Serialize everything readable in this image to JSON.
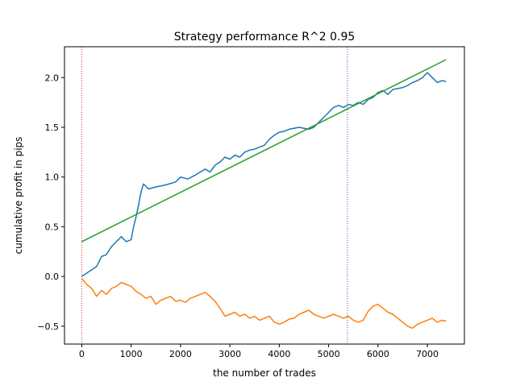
{
  "chart_data": {
    "type": "line",
    "title": "Strategy performance R^2 0.95",
    "xlabel": "the number of trades",
    "ylabel": "cumulative profit in pips",
    "xlim": [
      -350,
      7750
    ],
    "ylim": [
      -0.68,
      2.31
    ],
    "xticks": [
      0,
      1000,
      2000,
      3000,
      4000,
      5000,
      6000,
      7000
    ],
    "yticks": [
      -0.5,
      0.0,
      0.5,
      1.0,
      1.5,
      2.0
    ],
    "xtick_labels": [
      "0",
      "1000",
      "2000",
      "3000",
      "4000",
      "5000",
      "6000",
      "7000"
    ],
    "ytick_labels": [
      "−0.5",
      "0.0",
      "0.5",
      "1.0",
      "1.5",
      "2.0"
    ],
    "grid": false,
    "legend": "none",
    "vlines": [
      {
        "x": 0,
        "color": "#d62728",
        "style": "dotted"
      },
      {
        "x": 5380,
        "color": "#5a3fbf",
        "style": "dotted"
      }
    ],
    "series": [
      {
        "color": "#1f77b4",
        "x": [
          0,
          150,
          300,
          400,
          500,
          600,
          700,
          800,
          900,
          1000,
          1050,
          1100,
          1150,
          1200,
          1250,
          1350,
          1500,
          1700,
          1900,
          2000,
          2150,
          2300,
          2400,
          2500,
          2600,
          2700,
          2800,
          2900,
          3000,
          3100,
          3200,
          3300,
          3400,
          3500,
          3700,
          3800,
          3900,
          4000,
          4100,
          4200,
          4400,
          4600,
          4700,
          4800,
          4900,
          5000,
          5100,
          5200,
          5300,
          5400,
          5500,
          5600,
          5700,
          5800,
          5900,
          6000,
          6100,
          6200,
          6300,
          6500,
          6600,
          6700,
          6800,
          6900,
          7000,
          7100,
          7200,
          7300,
          7380
        ],
        "y": [
          0.0,
          0.05,
          0.1,
          0.2,
          0.22,
          0.3,
          0.35,
          0.4,
          0.35,
          0.37,
          0.5,
          0.6,
          0.72,
          0.85,
          0.93,
          0.88,
          0.9,
          0.92,
          0.95,
          1.0,
          0.98,
          1.02,
          1.05,
          1.08,
          1.05,
          1.12,
          1.15,
          1.2,
          1.18,
          1.22,
          1.2,
          1.25,
          1.27,
          1.28,
          1.32,
          1.38,
          1.42,
          1.45,
          1.46,
          1.48,
          1.5,
          1.48,
          1.5,
          1.55,
          1.6,
          1.65,
          1.7,
          1.72,
          1.7,
          1.73,
          1.72,
          1.75,
          1.73,
          1.78,
          1.8,
          1.85,
          1.87,
          1.83,
          1.88,
          1.9,
          1.92,
          1.95,
          1.97,
          2.0,
          2.05,
          2.0,
          1.95,
          1.97,
          1.96
        ]
      },
      {
        "color": "#ff7f0e",
        "x": [
          0,
          100,
          200,
          300,
          400,
          500,
          600,
          700,
          800,
          900,
          1000,
          1100,
          1200,
          1300,
          1400,
          1500,
          1600,
          1700,
          1800,
          1900,
          2000,
          2100,
          2200,
          2300,
          2400,
          2500,
          2600,
          2700,
          2800,
          2900,
          3000,
          3100,
          3200,
          3300,
          3400,
          3500,
          3600,
          3700,
          3800,
          3900,
          4000,
          4100,
          4200,
          4300,
          4400,
          4500,
          4600,
          4700,
          4800,
          4900,
          5000,
          5100,
          5200,
          5300,
          5400,
          5500,
          5600,
          5700,
          5800,
          5900,
          6000,
          6100,
          6200,
          6300,
          6400,
          6500,
          6600,
          6700,
          6800,
          6900,
          7000,
          7100,
          7200,
          7300,
          7380
        ],
        "y": [
          -0.02,
          -0.08,
          -0.12,
          -0.2,
          -0.14,
          -0.18,
          -0.12,
          -0.1,
          -0.06,
          -0.08,
          -0.1,
          -0.15,
          -0.18,
          -0.22,
          -0.2,
          -0.28,
          -0.24,
          -0.22,
          -0.2,
          -0.25,
          -0.24,
          -0.26,
          -0.22,
          -0.2,
          -0.18,
          -0.16,
          -0.2,
          -0.25,
          -0.32,
          -0.4,
          -0.38,
          -0.36,
          -0.4,
          -0.38,
          -0.42,
          -0.4,
          -0.44,
          -0.42,
          -0.4,
          -0.46,
          -0.48,
          -0.46,
          -0.43,
          -0.42,
          -0.38,
          -0.36,
          -0.34,
          -0.38,
          -0.4,
          -0.42,
          -0.4,
          -0.38,
          -0.4,
          -0.42,
          -0.4,
          -0.44,
          -0.46,
          -0.44,
          -0.35,
          -0.3,
          -0.28,
          -0.32,
          -0.36,
          -0.38,
          -0.42,
          -0.46,
          -0.5,
          -0.52,
          -0.48,
          -0.46,
          -0.44,
          -0.42,
          -0.46,
          -0.44,
          -0.45
        ]
      },
      {
        "color": "#2ca02c",
        "x": [
          0,
          7380
        ],
        "y": [
          0.35,
          2.18
        ]
      }
    ]
  }
}
